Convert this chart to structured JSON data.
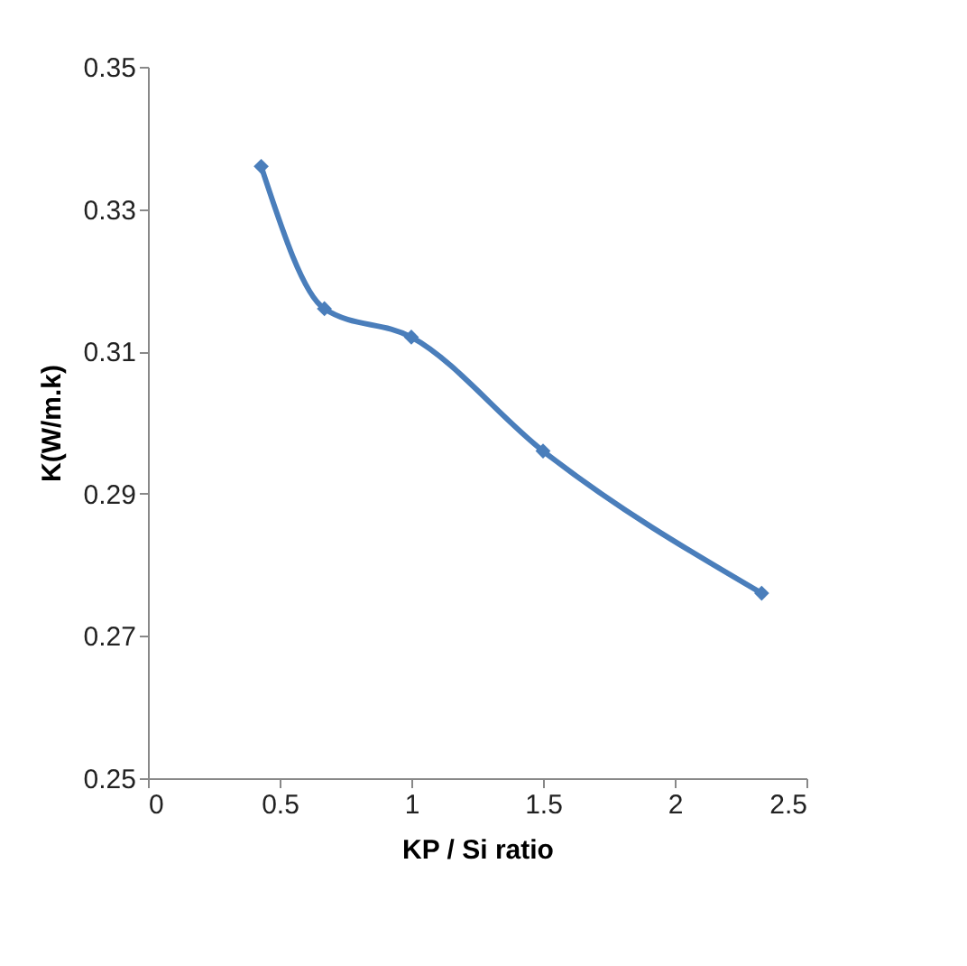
{
  "chart_data": {
    "type": "line",
    "xlabel": "KP / Si ratio",
    "ylabel": "K(W/m.k)",
    "x": [
      0.43,
      0.67,
      1.0,
      1.5,
      2.33
    ],
    "series": [
      {
        "color": "#4a7ebb",
        "values": [
          0.336,
          0.316,
          0.312,
          0.296,
          0.276
        ]
      }
    ],
    "xlim": [
      0,
      2.5
    ],
    "xticks": [
      0,
      0.5,
      1,
      1.5,
      2,
      2.5
    ],
    "ylim": [
      0.25,
      0.35
    ],
    "yticks": [
      0.25,
      0.27,
      0.29,
      0.31,
      0.33,
      0.35
    ],
    "marker": "diamond",
    "line_style": "solid",
    "grid": false,
    "legend": false
  }
}
